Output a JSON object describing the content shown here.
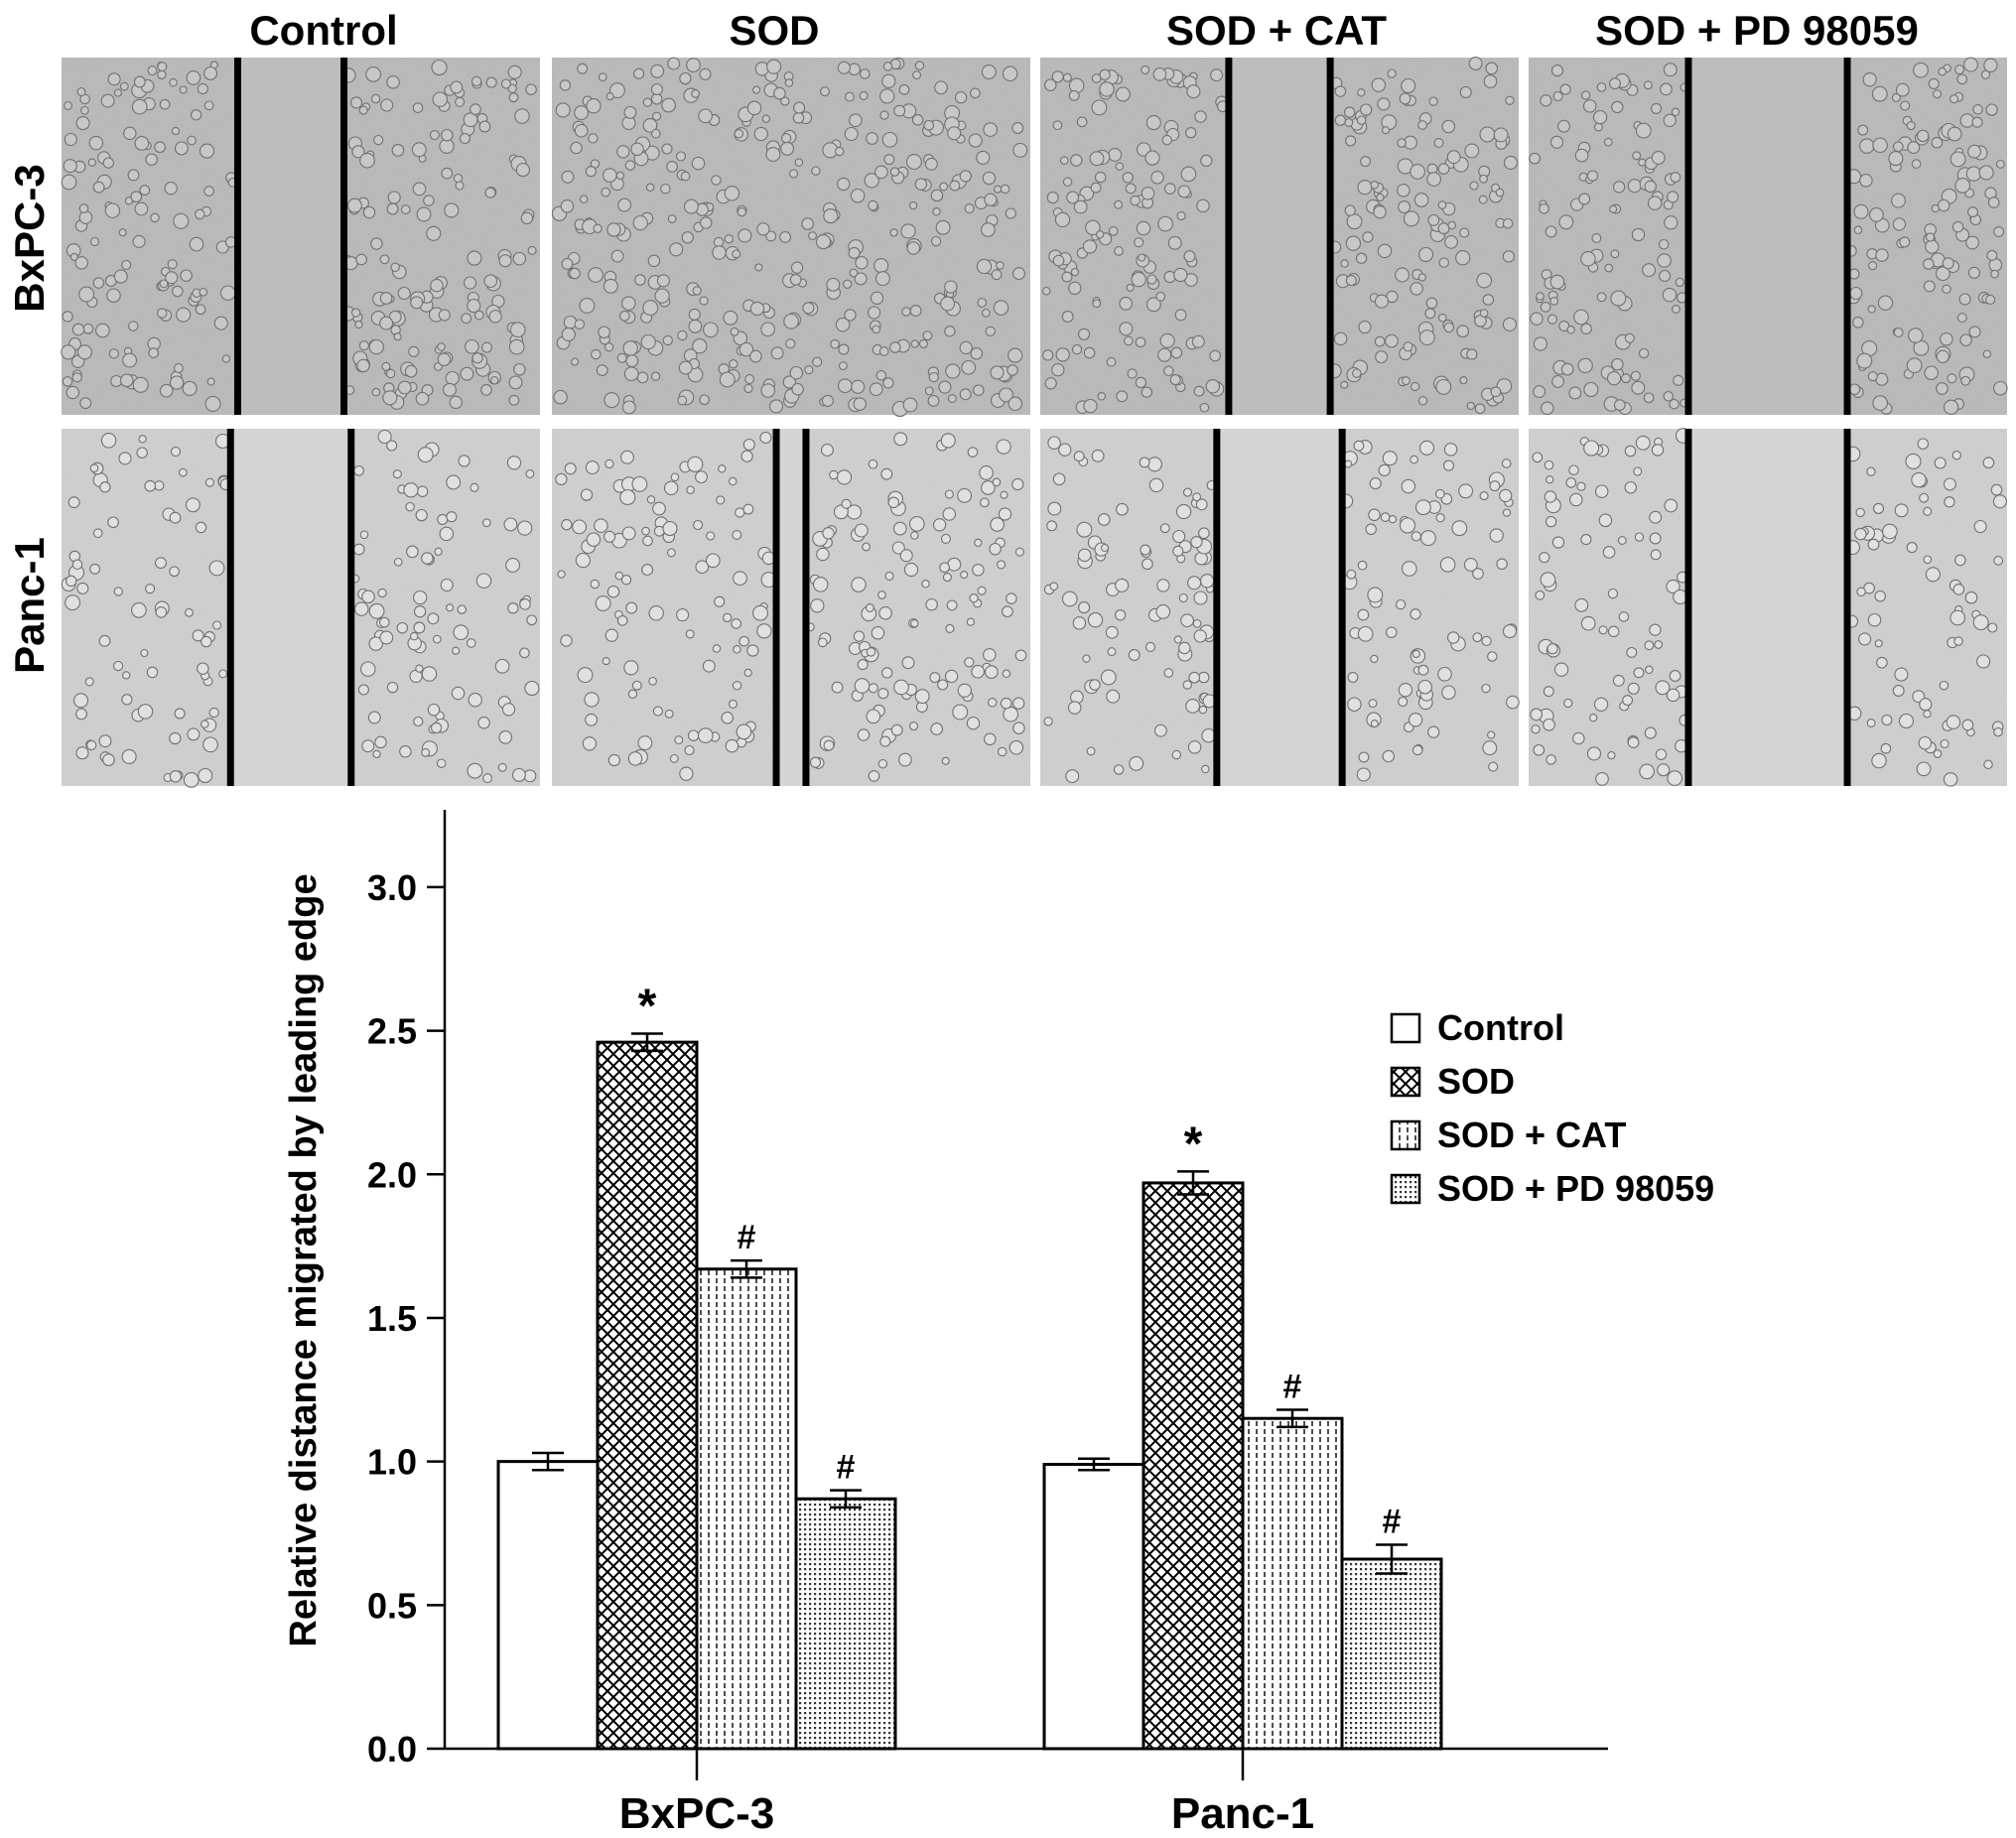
{
  "panel_top": {
    "column_headers": [
      "Control",
      "SOD",
      "SOD + CAT",
      "SOD + PD 98059"
    ],
    "row_headers": [
      "BxPC-3",
      "Panc-1"
    ],
    "micrographs": [
      [
        {
          "gap_fraction": 0.22,
          "cell_density": "dense"
        },
        {
          "gap_fraction": 0.0,
          "cell_density": "dense"
        },
        {
          "gap_fraction": 0.21,
          "cell_density": "dense"
        },
        {
          "gap_fraction": 0.33,
          "cell_density": "dense"
        }
      ],
      [
        {
          "gap_fraction": 0.25,
          "cell_density": "sparse"
        },
        {
          "gap_fraction": 0.06,
          "cell_density": "sparse"
        },
        {
          "gap_fraction": 0.26,
          "cell_density": "sparse"
        },
        {
          "gap_fraction": 0.33,
          "cell_density": "sparse"
        }
      ]
    ]
  },
  "chart_data": {
    "type": "bar",
    "title": "",
    "xlabel": "",
    "ylabel": "Relative distance migrated by leading edge",
    "categories": [
      "BxPC-3",
      "Panc-1"
    ],
    "series": [
      {
        "name": "Control",
        "values": [
          1.0,
          0.99
        ],
        "errors": [
          0.03,
          0.02
        ],
        "annotations": [
          "",
          ""
        ],
        "pattern": "none"
      },
      {
        "name": "SOD",
        "values": [
          2.46,
          1.97
        ],
        "errors": [
          0.03,
          0.04
        ],
        "annotations": [
          "*",
          "*"
        ],
        "pattern": "crosshatch"
      },
      {
        "name": "SOD + CAT",
        "values": [
          1.67,
          1.15
        ],
        "errors": [
          0.03,
          0.03
        ],
        "annotations": [
          "#",
          "#"
        ],
        "pattern": "vertical-dashes"
      },
      {
        "name": "SOD + PD 98059",
        "values": [
          0.87,
          0.66
        ],
        "errors": [
          0.03,
          0.05
        ],
        "annotations": [
          "#",
          "#"
        ],
        "pattern": "dots"
      }
    ],
    "ylim": [
      0,
      3.2
    ],
    "yticks": [
      "0.0",
      "0.5",
      "1.0",
      "1.5",
      "2.0",
      "2.5",
      "3.0"
    ],
    "grid": false,
    "legend_position": "right"
  }
}
